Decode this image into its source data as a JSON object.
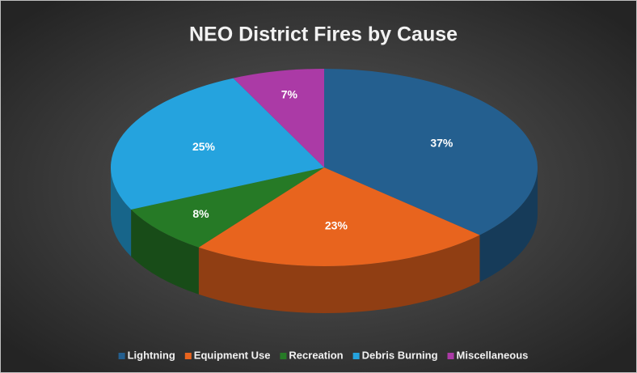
{
  "chart_data": {
    "type": "pie3d",
    "title": "NEO District Fires by Cause",
    "categories": [
      "Lightning",
      "Equipment Use",
      "Recreation",
      "Debris Burning",
      "Miscellaneous"
    ],
    "values": [
      37,
      23,
      8,
      25,
      7
    ],
    "value_labels": [
      "37%",
      "23%",
      "8%",
      "25%",
      "7%"
    ],
    "colors": [
      "#245f8f",
      "#e8641e",
      "#267a26",
      "#25a3de",
      "#ab3aa6"
    ],
    "legend": "bottom"
  }
}
